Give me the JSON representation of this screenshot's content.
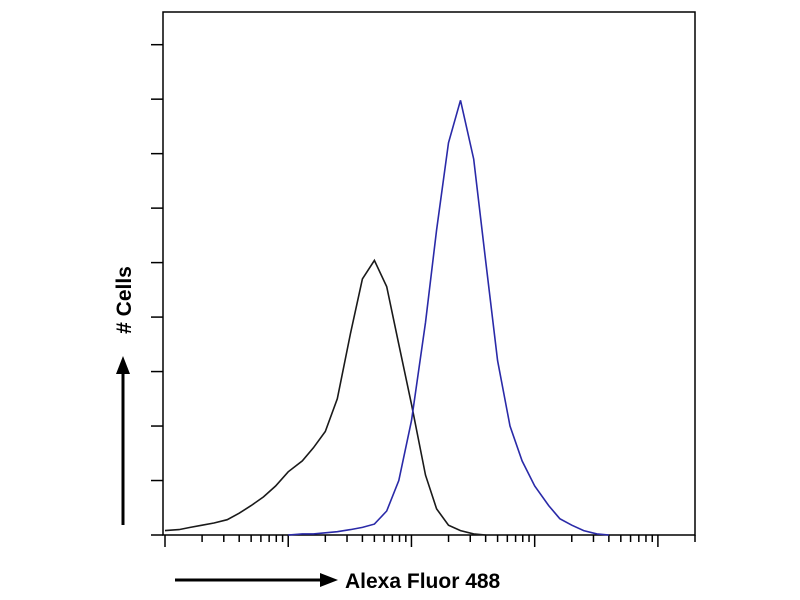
{
  "chart_data": {
    "type": "line",
    "ylabel": "# Cells",
    "xlabel": "Alexa Fluor 488",
    "log_x": true,
    "xlim": [
      1,
      20000
    ],
    "xticks": [
      1,
      2,
      3,
      4,
      5,
      6,
      7,
      8,
      9,
      10,
      20,
      30,
      40,
      50,
      60,
      70,
      80,
      90,
      100,
      200,
      300,
      400,
      500,
      600,
      700,
      800,
      900,
      1000,
      2000,
      3000,
      4000,
      5000,
      6000,
      7000,
      8000,
      9000,
      10000,
      20000
    ],
    "ylim": [
      0,
      480
    ],
    "yticks": [
      0,
      50,
      100,
      150,
      200,
      250,
      300,
      350,
      400,
      450
    ],
    "x": [
      1,
      1.3,
      1.6,
      2,
      2.5,
      3.2,
      4,
      5,
      6.3,
      7.9,
      10,
      13,
      16,
      20,
      25,
      32,
      40,
      50,
      63,
      79,
      100,
      130,
      160,
      200,
      250,
      320,
      400,
      500,
      630,
      790,
      1000,
      1300,
      1600,
      2000,
      2500,
      3200,
      4000
    ],
    "series": [
      {
        "color": "#1a1a1a",
        "values": [
          4,
          5,
          7,
          9,
          11,
          14,
          20,
          27,
          35,
          45,
          58,
          68,
          80,
          95,
          125,
          185,
          235,
          252,
          228,
          175,
          120,
          55,
          24,
          9,
          4,
          1,
          0,
          null,
          null,
          null,
          null,
          null,
          null,
          null,
          null,
          null,
          null
        ]
      },
      {
        "color": "#2a2aa8",
        "values": [
          null,
          null,
          null,
          null,
          null,
          null,
          null,
          null,
          null,
          null,
          0,
          1,
          1,
          2,
          3,
          5,
          7,
          10,
          22,
          50,
          105,
          195,
          280,
          360,
          399,
          345,
          252,
          160,
          100,
          68,
          45,
          27,
          15,
          9,
          4,
          1,
          0
        ]
      }
    ]
  }
}
